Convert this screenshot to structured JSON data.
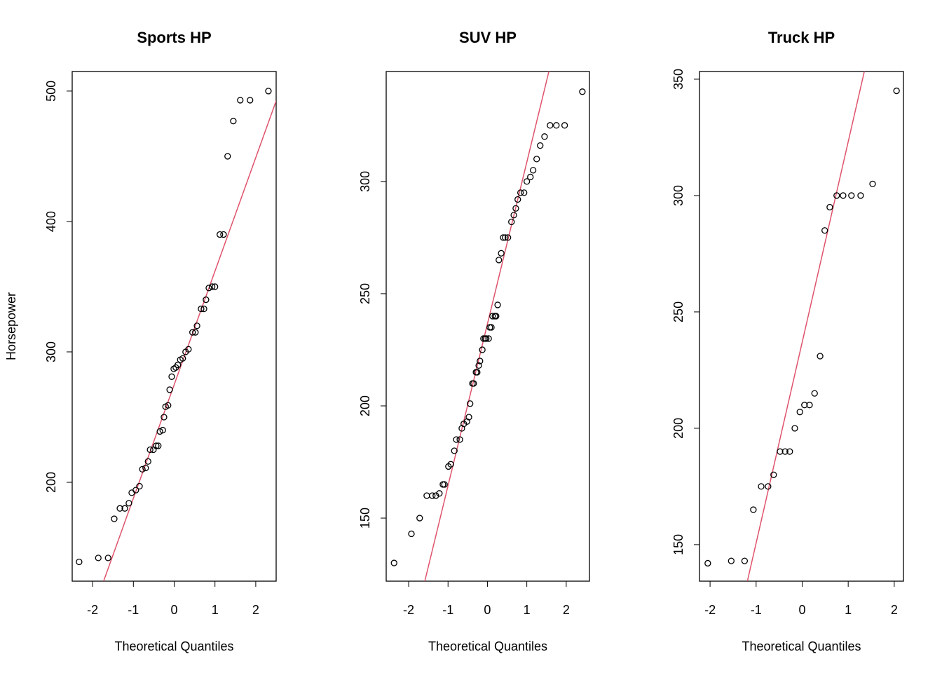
{
  "chart_data": [
    {
      "type": "qq",
      "title": "Sports HP",
      "xlabel": "Theoretical Quantiles",
      "ylabel": "Horsepower",
      "color": "#000000",
      "line_color": "#DF536B",
      "x": [
        -2.33,
        -1.86,
        -1.62,
        -1.47,
        -1.33,
        -1.21,
        -1.11,
        -1.04,
        -0.94,
        -0.85,
        -0.78,
        -0.7,
        -0.64,
        -0.59,
        -0.51,
        -0.44,
        -0.39,
        -0.35,
        -0.28,
        -0.25,
        -0.21,
        -0.15,
        -0.11,
        -0.06,
        -0.01,
        0.04,
        0.09,
        0.15,
        0.21,
        0.28,
        0.35,
        0.45,
        0.52,
        0.56,
        0.66,
        0.73,
        0.78,
        0.85,
        0.93,
        1.0,
        1.12,
        1.21,
        1.31,
        1.45,
        1.62,
        1.86,
        2.31
      ],
      "values": [
        139,
        142,
        142,
        172,
        180,
        180,
        184,
        192,
        194,
        197,
        210,
        211,
        216,
        225,
        225,
        228,
        228,
        239,
        240,
        250,
        258,
        259,
        271,
        281,
        287,
        288,
        290,
        294,
        295,
        300,
        302,
        315,
        315,
        320,
        333,
        333,
        340,
        349,
        350,
        350,
        390,
        390,
        450,
        477,
        493,
        493,
        500
      ],
      "line": {
        "x": [
          -1.73,
          2.5
        ],
        "y": [
          124.2,
          492.5
        ]
      },
      "xlim": [
        -2.5,
        2.5
      ],
      "xticks": [
        -2,
        -1,
        0,
        1,
        2
      ],
      "ylim": [
        124.2,
        515
      ],
      "yticks": [
        200,
        300,
        400,
        500
      ]
    },
    {
      "type": "qq",
      "title": "SUV HP",
      "xlabel": "Theoretical Quantiles",
      "color": "#000000",
      "line_color": "#DF536B",
      "x": [
        -2.37,
        -1.93,
        -1.72,
        -1.54,
        -1.4,
        -1.31,
        -1.22,
        -1.13,
        -1.09,
        -0.99,
        -0.93,
        -0.84,
        -0.79,
        -0.7,
        -0.65,
        -0.6,
        -0.52,
        -0.47,
        -0.44,
        -0.38,
        -0.35,
        -0.29,
        -0.26,
        -0.22,
        -0.19,
        -0.13,
        -0.1,
        -0.06,
        -0.03,
        0.03,
        0.06,
        0.1,
        0.13,
        0.19,
        0.22,
        0.26,
        0.29,
        0.35,
        0.4,
        0.45,
        0.52,
        0.61,
        0.67,
        0.72,
        0.77,
        0.84,
        0.93,
        1.0,
        1.09,
        1.16,
        1.25,
        1.34,
        1.45,
        1.59,
        1.75,
        1.96,
        2.41
      ],
      "values": [
        130,
        143,
        150,
        160,
        160,
        160,
        161,
        165,
        165,
        173,
        174,
        180,
        185,
        185,
        190,
        192,
        193,
        195,
        201,
        210,
        210,
        215,
        215,
        218,
        220,
        225,
        230,
        230,
        230,
        230,
        235,
        235,
        240,
        240,
        240,
        245,
        265,
        268,
        275,
        275,
        275,
        282,
        285,
        288,
        292,
        295,
        295,
        300,
        302,
        305,
        310,
        316,
        320,
        325,
        325,
        325,
        340
      ],
      "line": {
        "x": [
          -1.59,
          1.56
        ],
        "y": [
          121.9,
          349
        ]
      },
      "xlim": [
        -2.57,
        2.59
      ],
      "xticks": [
        -2,
        -1,
        0,
        1,
        2
      ],
      "ylim": [
        121.9,
        349
      ],
      "yticks": [
        150,
        200,
        250,
        300
      ]
    },
    {
      "type": "qq",
      "title": "Truck HP",
      "xlabel": "Theoretical Quantiles",
      "color": "#000000",
      "line_color": "#DF536B",
      "x": [
        -2.05,
        -1.54,
        -1.25,
        -1.06,
        -0.89,
        -0.74,
        -0.62,
        -0.48,
        -0.37,
        -0.27,
        -0.16,
        -0.05,
        0.05,
        0.16,
        0.27,
        0.39,
        0.49,
        0.6,
        0.75,
        0.89,
        1.07,
        1.27,
        1.53,
        2.05
      ],
      "values": [
        142,
        143,
        143,
        165,
        175,
        175,
        180,
        190,
        190,
        190,
        200,
        207,
        210,
        210,
        215,
        231,
        285,
        295,
        300,
        300,
        300,
        300,
        305,
        345
      ],
      "line": {
        "x": [
          -1.19,
          1.35
        ],
        "y": [
          134.3,
          353.3
        ]
      },
      "xlim": [
        -2.23,
        2.2
      ],
      "xticks": [
        -2,
        -1,
        0,
        1,
        2
      ],
      "ylim": [
        134.3,
        353.3
      ],
      "yticks": [
        150,
        200,
        250,
        300,
        350
      ]
    }
  ]
}
